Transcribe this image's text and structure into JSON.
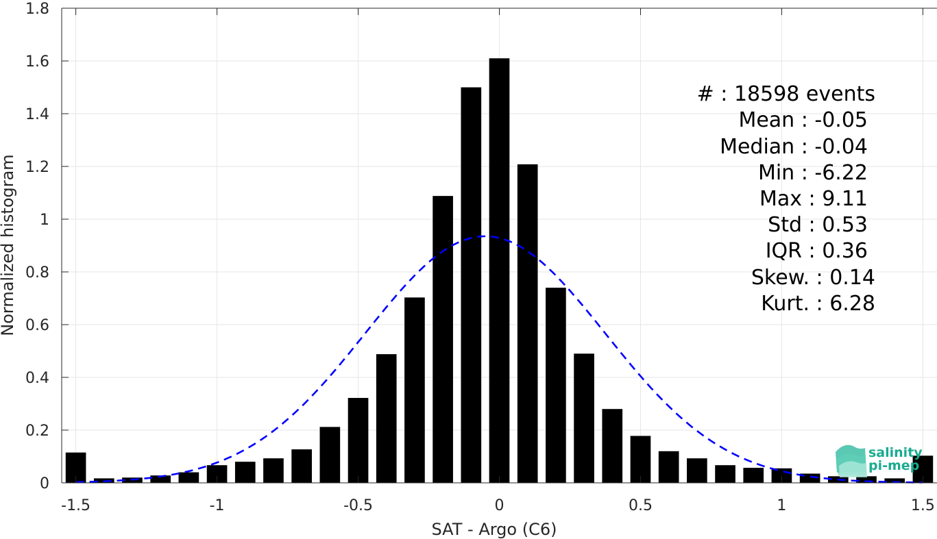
{
  "chart_data": {
    "type": "bar",
    "xlabel": "SAT - Argo (C6)",
    "ylabel": "Normalized histogram",
    "xlim": [
      -1.55,
      1.55
    ],
    "ylim": [
      0,
      1.8
    ],
    "grid": true,
    "x": [
      -1.5,
      -1.4,
      -1.3,
      -1.2,
      -1.1,
      -1.0,
      -0.9,
      -0.8,
      -0.7,
      -0.6,
      -0.5,
      -0.4,
      -0.3,
      -0.2,
      -0.1,
      0.0,
      0.1,
      0.2,
      0.3,
      0.4,
      0.5,
      0.6,
      0.7,
      0.8,
      0.9,
      1.0,
      1.1,
      1.2,
      1.3,
      1.4,
      1.5
    ],
    "values": [
      0.115,
      0.017,
      0.02,
      0.028,
      0.04,
      0.067,
      0.08,
      0.093,
      0.127,
      0.212,
      0.322,
      0.488,
      0.703,
      1.088,
      1.5,
      1.61,
      1.208,
      0.74,
      0.49,
      0.28,
      0.178,
      0.12,
      0.093,
      0.067,
      0.057,
      0.055,
      0.035,
      0.025,
      0.025,
      0.017,
      0.103
    ],
    "bar_color": "#000000",
    "fit": {
      "type": "gaussian",
      "mean": -0.05,
      "std": 0.425,
      "peak": 0.935,
      "color": "#0000ff",
      "style": "dashed"
    },
    "xticks": [
      "-1.5",
      "-1",
      "-0.5",
      "0",
      "0.5",
      "1",
      "1.5"
    ],
    "yticks": [
      "0",
      "0.2",
      "0.4",
      "0.6",
      "0.8",
      "1",
      "1.2",
      "1.4",
      "1.6",
      "1.8"
    ]
  },
  "stats": {
    "events": "#  : 18598 events",
    "mean": "Mean : -0.05",
    "median": "Median : -0.04",
    "min": "Min : -6.22",
    "max": "Max : 9.11",
    "std": "Std : 0.53",
    "iqr": "IQR : 0.36",
    "skew": "Skew. : 0.14",
    "kurt": "Kurt. : 6.28"
  },
  "logo": {
    "line1": "salinity",
    "line2": "pi-mep",
    "color": "#1aab8f"
  }
}
